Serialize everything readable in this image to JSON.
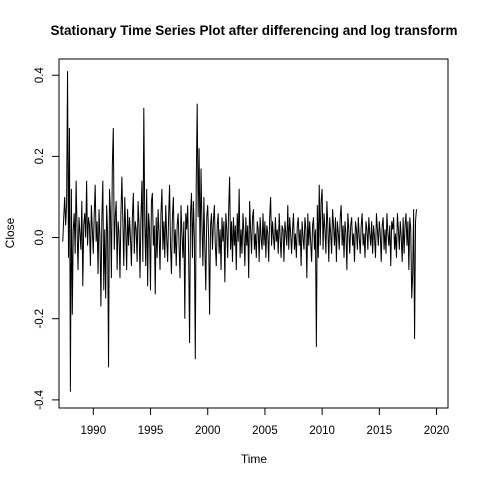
{
  "chart_data": {
    "type": "line",
    "title": "Stationary Time Series Plot after differencing and log transform",
    "xlabel": "Time",
    "ylabel": "Close",
    "xlim": [
      1987.0,
      2021.0
    ],
    "ylim": [
      -0.42,
      0.44
    ],
    "xticks": [
      1990,
      1995,
      2000,
      2005,
      2010,
      2015,
      2020
    ],
    "xtick_labels": [
      "1990",
      "1995",
      "2000",
      "2005",
      "2010",
      "2015",
      "2020"
    ],
    "yticks": [
      -0.4,
      -0.2,
      0.0,
      0.2,
      0.4
    ],
    "ytick_labels": [
      "-0.4",
      "-0.2",
      "0.0",
      "0.2",
      "0.4"
    ],
    "grid": false,
    "legend": "none",
    "series": [
      {
        "x_start": 1987.33,
        "x_step": 0.08333,
        "values": [
          -0.01,
          0.05,
          0.1,
          0.03,
          0.08,
          0.41,
          -0.05,
          0.27,
          -0.38,
          0.12,
          -0.19,
          0.02,
          0.06,
          -0.04,
          0.14,
          0.02,
          -0.08,
          0.05,
          0.01,
          -0.03,
          0.09,
          -0.12,
          0.03,
          0.06,
          0.0,
          0.14,
          -0.02,
          0.05,
          0.03,
          -0.07,
          0.08,
          0.02,
          -0.04,
          0.06,
          0.13,
          -0.01,
          0.04,
          -0.09,
          0.07,
          0.0,
          -0.17,
          0.05,
          0.14,
          -0.13,
          0.02,
          -0.15,
          0.08,
          0.01,
          -0.32,
          0.12,
          0.06,
          -0.1,
          0.18,
          0.27,
          -0.03,
          0.05,
          0.09,
          -0.08,
          0.04,
          0.01,
          -0.1,
          0.06,
          0.15,
          0.04,
          -0.07,
          0.1,
          0.02,
          -0.08,
          0.07,
          -0.02,
          0.05,
          0.0,
          -0.07,
          0.05,
          0.11,
          -0.04,
          0.04,
          0.02,
          -0.06,
          0.09,
          0.03,
          -0.1,
          0.05,
          0.14,
          -0.06,
          0.32,
          0.04,
          -0.07,
          0.12,
          -0.12,
          0.06,
          0.02,
          -0.13,
          0.09,
          0.11,
          -0.02,
          0.03,
          -0.14,
          0.05,
          -0.05,
          0.07,
          0.01,
          -0.08,
          0.06,
          0.12,
          -0.03,
          0.04,
          -0.05,
          0.08,
          0.0,
          -0.06,
          0.05,
          0.13,
          -0.02,
          -0.09,
          0.05,
          0.1,
          -0.04,
          0.02,
          -0.07,
          0.03,
          0.06,
          -0.02,
          -0.1,
          0.08,
          0.01,
          -0.05,
          0.04,
          -0.2,
          0.06,
          0.02,
          0.08,
          -0.04,
          -0.26,
          0.06,
          0.11,
          -0.05,
          0.09,
          0.0,
          -0.3,
          0.14,
          0.33,
          0.05,
          0.22,
          -0.05,
          0.17,
          0.03,
          -0.07,
          0.1,
          -0.02,
          -0.13,
          0.05,
          0.08,
          0.0,
          -0.19,
          0.03,
          0.06,
          -0.03,
          0.04,
          0.08,
          -0.02,
          -0.07,
          0.03,
          0.06,
          -0.04,
          0.02,
          -0.08,
          0.05,
          -0.01,
          0.04,
          -0.11,
          0.06,
          0.02,
          -0.05,
          0.07,
          0.15,
          -0.03,
          0.04,
          -0.06,
          0.05,
          -0.02,
          0.03,
          -0.08,
          0.06,
          -0.01,
          0.12,
          -0.05,
          0.02,
          -0.04,
          0.06,
          0.01,
          -0.07,
          0.05,
          -0.02,
          0.03,
          -0.1,
          0.09,
          0.02,
          -0.04,
          0.05,
          0.07,
          -0.03,
          0.01,
          -0.05,
          0.04,
          0.02,
          -0.06,
          0.05,
          0.0,
          -0.03,
          0.06,
          -0.02,
          0.04,
          -0.05,
          0.03,
          0.01,
          -0.06,
          0.05,
          0.1,
          -0.02,
          0.04,
          0.0,
          -0.03,
          0.05,
          -0.01,
          0.02,
          -0.04,
          0.06,
          0.0,
          -0.05,
          0.03,
          0.02,
          -0.06,
          0.04,
          0.01,
          -0.02,
          0.08,
          -0.03,
          0.05,
          0.01,
          -0.04,
          0.02,
          0.06,
          -0.03,
          0.01,
          -0.05,
          0.03,
          0.05,
          -0.02,
          0.02,
          -0.07,
          0.04,
          0.0,
          -0.03,
          0.05,
          0.02,
          -0.1,
          0.06,
          -0.02,
          0.04,
          -0.01,
          -0.06,
          0.03,
          0.05,
          -0.03,
          0.02,
          -0.27,
          0.08,
          -0.05,
          0.13,
          -0.02,
          0.09,
          0.12,
          -0.03,
          0.06,
          0.02,
          -0.04,
          0.09,
          0.03,
          -0.06,
          0.05,
          0.01,
          -0.04,
          0.07,
          0.03,
          -0.02,
          0.05,
          -0.06,
          0.04,
          0.01,
          -0.03,
          0.05,
          0.08,
          -0.02,
          0.03,
          -0.05,
          0.04,
          0.01,
          -0.08,
          0.06,
          0.02,
          -0.04,
          0.03,
          0.05,
          -0.02,
          0.01,
          -0.06,
          0.04,
          0.02,
          -0.03,
          0.05,
          0.0,
          -0.04,
          0.03,
          0.06,
          -0.02,
          0.01,
          -0.05,
          0.04,
          0.02,
          -0.03,
          0.05,
          0.01,
          -0.02,
          0.04,
          -0.04,
          0.03,
          0.0,
          -0.05,
          0.06,
          0.02,
          -0.02,
          0.04,
          0.01,
          -0.06,
          0.03,
          0.05,
          -0.03,
          0.02,
          -0.04,
          0.06,
          0.01,
          -0.02,
          0.03,
          -0.07,
          0.04,
          0.02,
          0.05,
          -0.03,
          0.01,
          -0.05,
          0.06,
          0.02,
          -0.03,
          0.04,
          0.0,
          -0.06,
          0.05,
          -0.04,
          0.03,
          0.06,
          -0.02,
          0.04,
          -0.08,
          0.05,
          0.02,
          -0.15,
          -0.09,
          0.07,
          -0.25,
          0.04,
          0.07
        ]
      }
    ]
  }
}
